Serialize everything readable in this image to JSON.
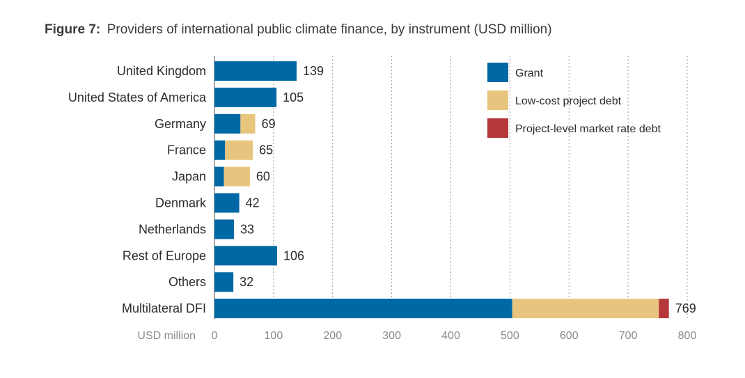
{
  "chart_data": {
    "type": "bar",
    "orientation": "horizontal",
    "stacked": true,
    "title_prefix": "Figure 7:",
    "title": "Providers of international public climate finance, by instrument (USD million)",
    "xlabel": "USD million",
    "ylabel": "",
    "xlim": [
      0,
      800
    ],
    "xticks": [
      0,
      100,
      200,
      300,
      400,
      500,
      600,
      700,
      800
    ],
    "grid": "vertical dotted",
    "legend_position": "top-right",
    "categories": [
      "United Kingdom",
      "United States of America",
      "Germany",
      "France",
      "Japan",
      "Denmark",
      "Netherlands",
      "Rest of Europe",
      "Others",
      "Multilateral DFI"
    ],
    "series": [
      {
        "name": "Grant",
        "color": "#0068a5",
        "values": [
          139,
          105,
          44,
          18,
          16,
          42,
          33,
          106,
          32,
          504
        ]
      },
      {
        "name": "Low-cost project debt",
        "color": "#e8c57f",
        "values": [
          0,
          0,
          25,
          47,
          44,
          0,
          0,
          0,
          0,
          248
        ]
      },
      {
        "name": "Project-level market rate debt",
        "color": "#b5373a",
        "values": [
          0,
          0,
          0,
          0,
          0,
          0,
          0,
          0,
          0,
          17
        ]
      }
    ],
    "totals": [
      139,
      105,
      69,
      65,
      60,
      42,
      33,
      106,
      32,
      769
    ]
  }
}
